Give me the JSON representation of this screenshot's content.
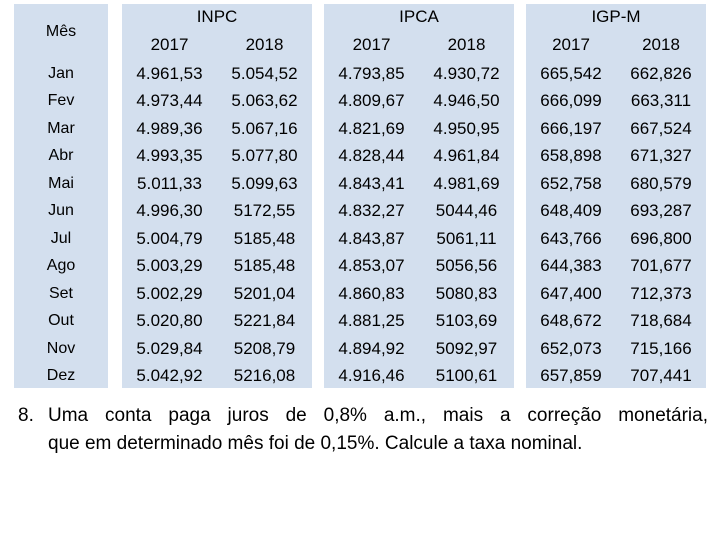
{
  "table": {
    "month_header": "Mês",
    "months": [
      "Jan",
      "Fev",
      "Mar",
      "Abr",
      "Mai",
      "Jun",
      "Jul",
      "Ago",
      "Set",
      "Out",
      "Nov",
      "Dez"
    ],
    "indices": [
      {
        "name": "INPC",
        "years": [
          "2017",
          "2018"
        ],
        "values_2017": [
          "4.961,53",
          "4.973,44",
          "4.989,36",
          "4.993,35",
          "5.011,33",
          "4.996,30",
          "5.004,79",
          "5.003,29",
          "5.002,29",
          "5.020,80",
          "5.029,84",
          "5.042,92"
        ],
        "values_2018": [
          "5.054,52",
          "5.063,62",
          "5.067,16",
          "5.077,80",
          "5.099,63",
          "5172,55",
          "5185,48",
          "5185,48",
          "5201,04",
          "5221,84",
          "5208,79",
          "5216,08"
        ]
      },
      {
        "name": "IPCA",
        "years": [
          "2017",
          "2018"
        ],
        "values_2017": [
          "4.793,85",
          "4.809,67",
          "4.821,69",
          "4.828,44",
          "4.843,41",
          "4.832,27",
          "4.843,87",
          "4.853,07",
          "4.860,83",
          "4.881,25",
          "4.894,92",
          "4.916,46"
        ],
        "values_2018": [
          "4.930,72",
          "4.946,50",
          "4.950,95",
          "4.961,84",
          "4.981,69",
          "5044,46",
          "5061,11",
          "5056,56",
          "5080,83",
          "5103,69",
          "5092,97",
          "5100,61"
        ]
      },
      {
        "name": "IGP-M",
        "years": [
          "2017",
          "2018"
        ],
        "values_2017": [
          "665,542",
          "666,099",
          "666,197",
          "658,898",
          "652,758",
          "648,409",
          "643,766",
          "644,383",
          "647,400",
          "648,672",
          "652,073",
          "657,859"
        ],
        "values_2018": [
          "662,826",
          "663,311",
          "667,524",
          "671,327",
          "680,579",
          "693,287",
          "696,800",
          "701,677",
          "712,373",
          "718,684",
          "715,166",
          "707,441"
        ]
      }
    ]
  },
  "question": {
    "number": "8.",
    "line1": "Uma conta paga juros de 0,8% a.m., mais a correção monetária,",
    "line2": "que em determinado mês foi de 0,15%. Calcule a taxa nominal."
  },
  "colors": {
    "table_bg": "#d3dfee"
  }
}
